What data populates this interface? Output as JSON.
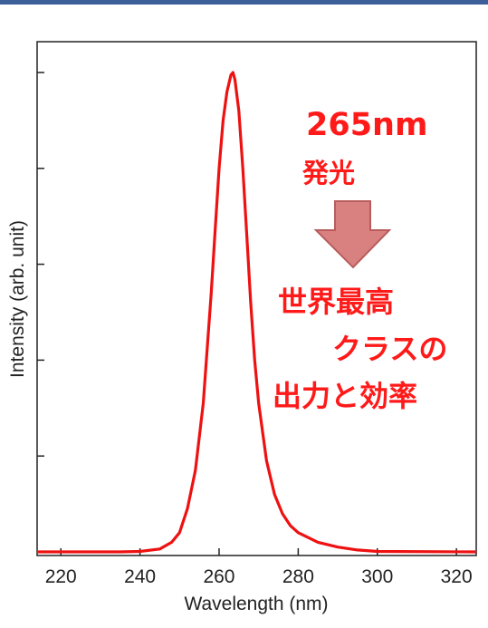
{
  "colors": {
    "banner": "#3d5f9a",
    "spectrum": "#ee1111",
    "callout_text": "#ff1a1a",
    "arrow_fill": "#d98080",
    "arrow_stroke": "#b85c5c"
  },
  "callout": {
    "wavelength": "265nm",
    "emission": "発光",
    "result_line1": "世界最高",
    "result_line2": "クラスの",
    "result_line3": "出力と効率",
    "arrow_icon": "down-arrow-icon"
  },
  "chart_data": {
    "type": "line",
    "xlabel": "Wavelength (nm)",
    "ylabel": "Intensity (arb. unit)",
    "xlim": [
      214,
      325
    ],
    "ylim": [
      0,
      1.0
    ],
    "x_ticks": [
      220,
      240,
      260,
      280,
      300,
      320
    ],
    "y_ticks": [
      0,
      0.2,
      0.4,
      0.6,
      0.8,
      1.0
    ],
    "grid": false,
    "series": [
      {
        "x": [
          214,
          235,
          240,
          245,
          248,
          250,
          252,
          254,
          256,
          258,
          259,
          260,
          261,
          262,
          263,
          263.5,
          264,
          265,
          266,
          267,
          268,
          269,
          270,
          272,
          274,
          276,
          278,
          280,
          285,
          290,
          295,
          300,
          325
        ],
        "y": [
          0.0,
          0.0,
          0.001,
          0.006,
          0.02,
          0.04,
          0.09,
          0.17,
          0.31,
          0.54,
          0.67,
          0.8,
          0.9,
          0.96,
          0.995,
          1.0,
          0.985,
          0.92,
          0.8,
          0.66,
          0.52,
          0.4,
          0.31,
          0.19,
          0.12,
          0.08,
          0.055,
          0.04,
          0.02,
          0.01,
          0.004,
          0.001,
          0.0
        ]
      }
    ]
  }
}
